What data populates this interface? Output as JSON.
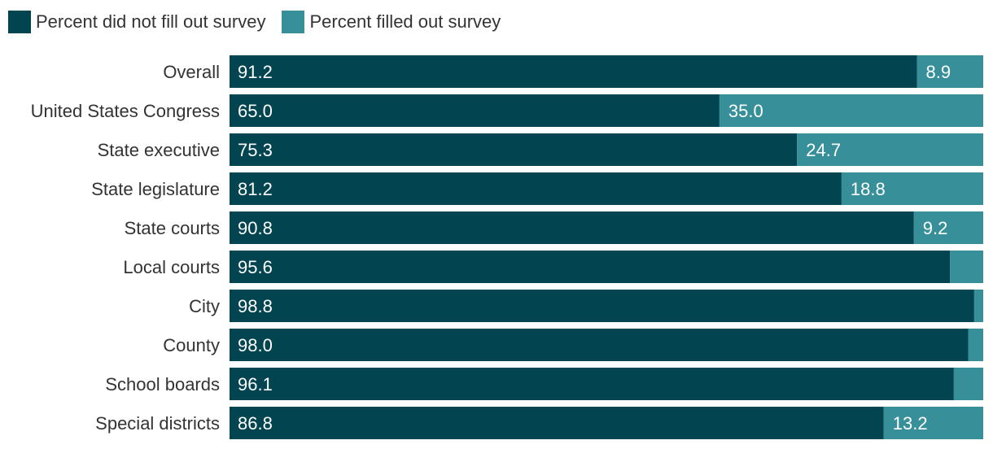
{
  "colors": {
    "did_not": "#02444f",
    "filled": "#368f99",
    "label_text": "#ffffff",
    "category_text": "#333333"
  },
  "legend": {
    "did_not_label": "Percent did not fill out survey",
    "filled_label": "Percent filled out survey"
  },
  "chart_data": {
    "type": "bar",
    "orientation": "horizontal",
    "stacked": true,
    "categories": [
      "Overall",
      "United States Congress",
      "State executive",
      "State legislature",
      "State courts",
      "Local courts",
      "City",
      "County",
      "School boards",
      "Special districts"
    ],
    "series": [
      {
        "name": "Percent did not fill out survey",
        "values": [
          91.2,
          65.0,
          75.3,
          81.2,
          90.8,
          95.6,
          98.8,
          98.0,
          96.1,
          86.8
        ]
      },
      {
        "name": "Percent filled out survey",
        "values": [
          8.9,
          35.0,
          24.7,
          18.8,
          9.2,
          4.4,
          1.2,
          2.0,
          3.9,
          13.2
        ]
      }
    ],
    "labels": {
      "did_not": [
        "91.2",
        "65.0",
        "75.3",
        "81.2",
        "90.8",
        "95.6",
        "98.8",
        "98.0",
        "96.1",
        "86.8"
      ],
      "filled": [
        "8.9",
        "35.0",
        "24.7",
        "18.8",
        "9.2",
        "",
        "",
        "",
        "",
        "13.2"
      ]
    },
    "xlim": [
      0,
      100
    ],
    "grid": false,
    "legend_position": "top-left"
  }
}
